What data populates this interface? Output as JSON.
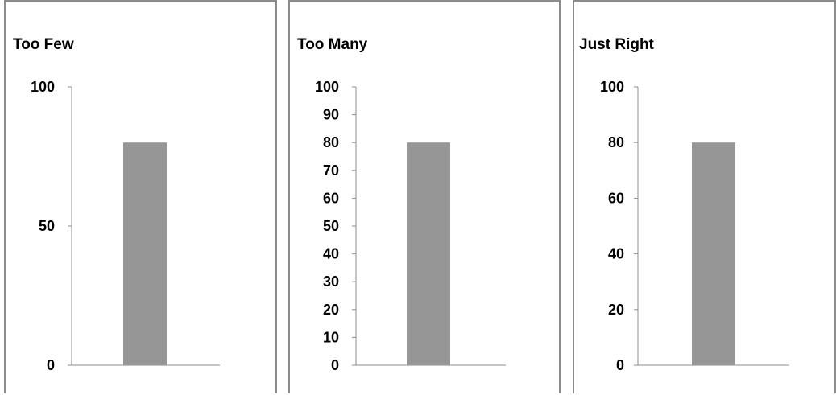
{
  "chart_data": [
    {
      "type": "bar",
      "title": "Too Few",
      "categories": [
        ""
      ],
      "values": [
        80
      ],
      "ylim": [
        0,
        100
      ],
      "yticks": [
        0,
        50,
        100
      ],
      "grid": false,
      "bar_color": "#969696",
      "axis_color": "#8c8c8c"
    },
    {
      "type": "bar",
      "title": "Too Many",
      "categories": [
        ""
      ],
      "values": [
        80
      ],
      "ylim": [
        0,
        100
      ],
      "yticks": [
        0,
        10,
        20,
        30,
        40,
        50,
        60,
        70,
        80,
        90,
        100
      ],
      "grid": false,
      "bar_color": "#969696",
      "axis_color": "#8c8c8c"
    },
    {
      "type": "bar",
      "title": "Just Right",
      "categories": [
        ""
      ],
      "values": [
        80
      ],
      "ylim": [
        0,
        100
      ],
      "yticks": [
        0,
        20,
        40,
        60,
        80,
        100
      ],
      "grid": false,
      "bar_color": "#969696",
      "axis_color": "#8c8c8c"
    }
  ]
}
